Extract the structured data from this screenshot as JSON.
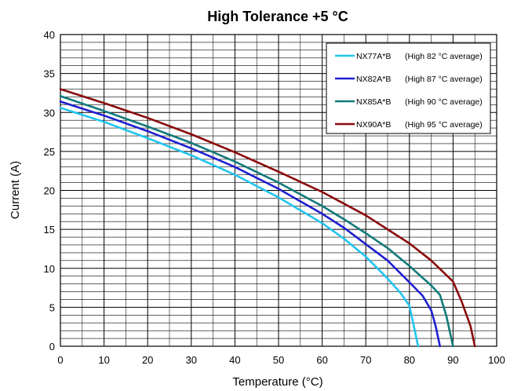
{
  "chart_data": {
    "type": "line",
    "title": "High Tolerance +5 °C",
    "xlabel": "Temperature (°C)",
    "ylabel": "Current (A)",
    "xlim": [
      0,
      100
    ],
    "ylim": [
      0,
      40
    ],
    "x_ticks": [
      "0",
      "10",
      "20",
      "30",
      "40",
      "50",
      "60",
      "70",
      "80",
      "90",
      "100"
    ],
    "y_ticks": [
      "0",
      "5",
      "10",
      "15",
      "20",
      "25",
      "30",
      "35",
      "40"
    ],
    "grid": {
      "x_major_step": 10,
      "x_minor_step": 5,
      "y_step": 1
    },
    "legend_position": "top-right",
    "series": [
      {
        "name": "NX77A*B",
        "note": "(High 82 °C average)",
        "color": "#21c4f0",
        "x": [
          0,
          10,
          20,
          30,
          40,
          50,
          60,
          65,
          70,
          75,
          78,
          80,
          81,
          82
        ],
        "y": [
          30.6,
          28.8,
          26.7,
          24.5,
          22.0,
          19.1,
          15.8,
          13.8,
          11.5,
          8.7,
          6.8,
          5.2,
          2.6,
          0
        ]
      },
      {
        "name": "NX82A*B",
        "note": "(High 87 °C average)",
        "color": "#1f1fd1",
        "x": [
          0,
          10,
          20,
          30,
          40,
          50,
          60,
          65,
          70,
          75,
          80,
          83,
          85,
          86,
          87
        ],
        "y": [
          31.4,
          29.6,
          27.6,
          25.4,
          23.0,
          20.2,
          17.0,
          15.2,
          13.1,
          11.0,
          8.2,
          6.5,
          4.6,
          2.6,
          0
        ]
      },
      {
        "name": "NX85A*B",
        "note": "(High 90 °C average)",
        "color": "#127a7a",
        "x": [
          0,
          10,
          20,
          30,
          40,
          50,
          60,
          65,
          70,
          75,
          80,
          85,
          87,
          88.5,
          90
        ],
        "y": [
          32.1,
          30.2,
          28.2,
          26.1,
          23.7,
          21.0,
          18.0,
          16.3,
          14.5,
          12.6,
          10.3,
          7.8,
          6.6,
          3.8,
          0
        ]
      },
      {
        "name": "NX90A*B",
        "note": "(High 95 °C average)",
        "color": "#8b0a0a",
        "x": [
          0,
          10,
          20,
          30,
          40,
          50,
          60,
          70,
          80,
          85,
          90,
          92,
          94,
          95
        ],
        "y": [
          33.0,
          31.2,
          29.3,
          27.2,
          24.9,
          22.4,
          19.8,
          16.8,
          13.2,
          11.0,
          8.3,
          5.7,
          2.6,
          0
        ]
      }
    ]
  }
}
